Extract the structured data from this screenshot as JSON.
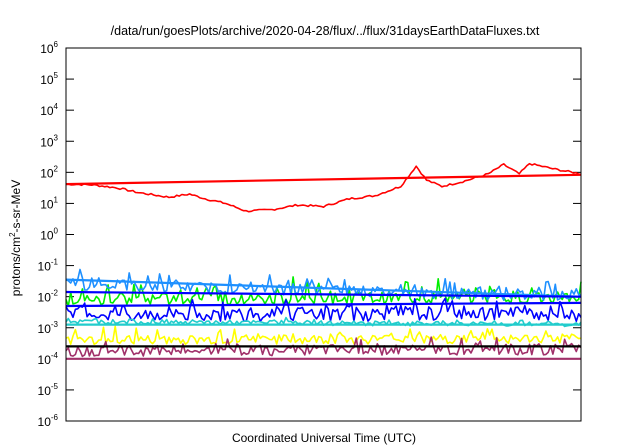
{
  "chart_data": {
    "type": "line",
    "title": "/data/run/goesPlots/archive/2020-04-28/flux/../flux/31daysEarthDataFluxes.txt",
    "xlabel": "Coordinated Universal Time (UTC)",
    "ylabel_parts": [
      "protons/cm",
      "2",
      "-s-sr-MeV"
    ],
    "yscale": "log",
    "ylim_exp": [
      -6,
      6
    ],
    "ytick_base": "10",
    "ytick_exponents": [
      "-6",
      "-5",
      "-4",
      "-3",
      "-2",
      "-1",
      "0",
      "1",
      "2",
      "3",
      "4",
      "5",
      "6"
    ],
    "grid": false,
    "series_colors": {
      "red": "#ff0000",
      "green": "#00ee00",
      "cyan_blue": "#1e90ff",
      "blue": "#0000ff",
      "teal": "#22cccc",
      "yellow": "#ffff00",
      "purple": "#a0306a",
      "black": "#000000"
    },
    "series": [
      {
        "color": "red",
        "kind": "data",
        "noise": 0,
        "log_points": [
          [
            0,
            1.62
          ],
          [
            0.05,
            1.6
          ],
          [
            0.1,
            1.5
          ],
          [
            0.14,
            1.35
          ],
          [
            0.2,
            1.2
          ],
          [
            0.24,
            1.3
          ],
          [
            0.27,
            1.15
          ],
          [
            0.31,
            1.0
          ],
          [
            0.35,
            0.75
          ],
          [
            0.4,
            0.8
          ],
          [
            0.45,
            0.95
          ],
          [
            0.5,
            0.9
          ],
          [
            0.55,
            1.15
          ],
          [
            0.6,
            1.25
          ],
          [
            0.65,
            1.55
          ],
          [
            0.68,
            2.2
          ],
          [
            0.7,
            1.75
          ],
          [
            0.73,
            1.55
          ],
          [
            0.77,
            1.7
          ],
          [
            0.82,
            1.95
          ],
          [
            0.85,
            2.25
          ],
          [
            0.88,
            1.95
          ],
          [
            0.9,
            2.28
          ],
          [
            0.95,
            2.1
          ],
          [
            1.0,
            1.95
          ]
        ]
      },
      {
        "color": "red",
        "kind": "fit",
        "log_points": [
          [
            0,
            1.62
          ],
          [
            1.0,
            1.92
          ]
        ]
      },
      {
        "color": "green",
        "kind": "data",
        "noise": 0.42,
        "spike": 0.6,
        "log_points": [
          [
            0,
            -2.1
          ],
          [
            1.0,
            -2.0
          ]
        ]
      },
      {
        "color": "cyan_blue",
        "kind": "data",
        "noise": 0.35,
        "spike": 0.4,
        "log_points": [
          [
            0,
            -1.6
          ],
          [
            1.0,
            -2.0
          ]
        ]
      },
      {
        "color": "blue",
        "kind": "data",
        "noise": 0.5,
        "spike": 0.3,
        "log_points": [
          [
            0,
            -2.55
          ],
          [
            1.0,
            -2.55
          ]
        ]
      },
      {
        "color": "teal",
        "kind": "data",
        "noise": 0.15,
        "spike": 0.1,
        "log_points": [
          [
            0,
            -2.8
          ],
          [
            1.0,
            -2.9
          ]
        ]
      },
      {
        "color": "yellow",
        "kind": "data",
        "noise": 0.3,
        "spike": 0.35,
        "log_points": [
          [
            0,
            -3.4
          ],
          [
            1.0,
            -3.35
          ]
        ]
      },
      {
        "color": "purple",
        "kind": "data",
        "noise": 0.35,
        "spike": 0.3,
        "log_points": [
          [
            0,
            -3.75
          ],
          [
            1.0,
            -3.7
          ]
        ]
      },
      {
        "color": "cyan_blue",
        "kind": "fit",
        "log_points": [
          [
            0,
            -1.45
          ],
          [
            1.0,
            -2.0
          ]
        ]
      },
      {
        "color": "blue",
        "kind": "fit",
        "log_points": [
          [
            0,
            -1.85
          ],
          [
            1.0,
            -2.0
          ]
        ]
      },
      {
        "color": "blue",
        "kind": "fit",
        "log_points": [
          [
            0,
            -2.3
          ],
          [
            1.0,
            -2.2
          ]
        ]
      },
      {
        "color": "teal",
        "kind": "fit",
        "log_points": [
          [
            0,
            -2.9
          ],
          [
            1.0,
            -2.9
          ]
        ]
      },
      {
        "color": "black",
        "kind": "fit",
        "log_points": [
          [
            0,
            -3.6
          ],
          [
            1.0,
            -3.6
          ]
        ]
      },
      {
        "color": "purple",
        "kind": "fit",
        "log_points": [
          [
            0,
            -4.0
          ],
          [
            1.0,
            -4.0
          ]
        ]
      }
    ]
  }
}
